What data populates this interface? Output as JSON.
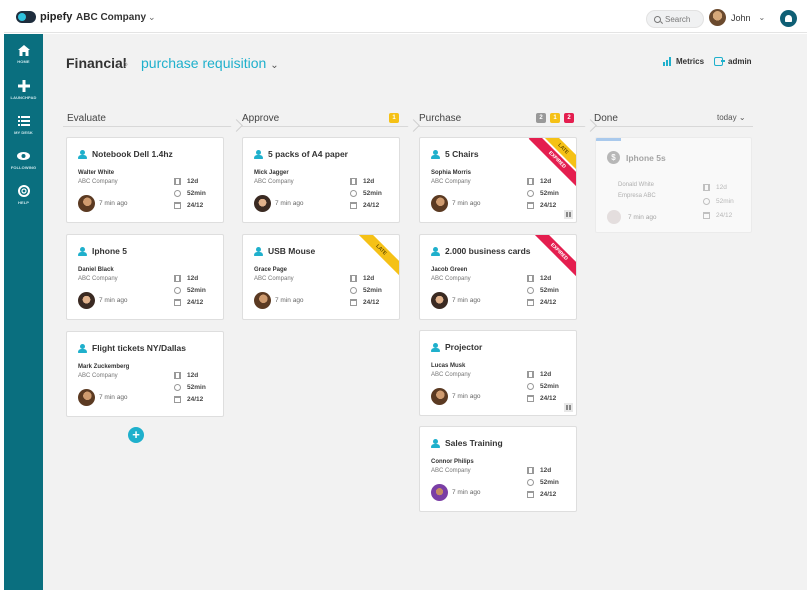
{
  "topbar": {
    "logo_text": "pipefy",
    "company": "ABC Company",
    "search_placeholder": "Search",
    "user_name": "John"
  },
  "sidebar": {
    "items": [
      {
        "label": "HOME",
        "icon": "home-icon"
      },
      {
        "label": "LAUNCHPAD",
        "icon": "plus-icon"
      },
      {
        "label": "MY DESK",
        "icon": "list-icon"
      },
      {
        "label": "FOLLOWING",
        "icon": "eye-icon"
      },
      {
        "label": "HELP",
        "icon": "lifebuoy-icon"
      }
    ]
  },
  "header": {
    "title": "Financial",
    "pipe_name": "purchase requisition",
    "metrics_label": "Metrics",
    "admin_label": "admin"
  },
  "colors": {
    "accent": "#1fb0cc",
    "sidebar": "#0a6f7f",
    "late": "#f5c116",
    "expired": "#e41e4f"
  },
  "phases": [
    {
      "title": "Evaluate"
    },
    {
      "title": "Approve",
      "badges": [
        "1"
      ]
    },
    {
      "title": "Purchase",
      "badges": [
        "2",
        "1",
        "2"
      ]
    },
    {
      "title": "Done",
      "filter": "today"
    }
  ],
  "cards": {
    "evaluate": [
      {
        "title": "Notebook Dell 1.4hz",
        "name": "Walter White",
        "company": "ABC Company",
        "ago": "7 min ago",
        "age": "12d",
        "time": "52min",
        "due": "24/12"
      },
      {
        "title": "Iphone 5",
        "name": "Daniel Black",
        "company": "ABC Company",
        "ago": "7 min ago",
        "age": "12d",
        "time": "52min",
        "due": "24/12"
      },
      {
        "title": "Flight tickets NY/Dallas",
        "name": "Mark Zuckemberg",
        "company": "ABC Company",
        "ago": "7 min ago",
        "age": "12d",
        "time": "52min",
        "due": "24/12"
      }
    ],
    "approve": [
      {
        "title": "5 packs of A4 paper",
        "name": "Mick Jagger",
        "company": "ABC Company",
        "ago": "7 min ago",
        "age": "12d",
        "time": "52min",
        "due": "24/12"
      },
      {
        "title": "USB Mouse",
        "name": "Grace Page",
        "company": "ABC Company",
        "ago": "7 min ago",
        "age": "12d",
        "time": "52min",
        "due": "24/12",
        "ribbon": "LATE"
      }
    ],
    "purchase": [
      {
        "title": "5 Chairs",
        "name": "Sophia Morris",
        "company": "ABC Company",
        "ago": "7 min ago",
        "age": "12d",
        "time": "52min",
        "due": "24/12",
        "ribbon_late": "LATE",
        "ribbon_expired": "EXPIRED"
      },
      {
        "title": "2.000 business cards",
        "name": "Jacob Green",
        "company": "ABC Company",
        "ago": "7 min ago",
        "age": "12d",
        "time": "52min",
        "due": "24/12",
        "ribbon": "EXPIRED"
      },
      {
        "title": "Projector",
        "name": "Lucas Musk",
        "company": "ABC Company",
        "ago": "7 min ago",
        "age": "12d",
        "time": "52min",
        "due": "24/12"
      },
      {
        "title": "Sales Training",
        "name": "Connor Philips",
        "company": "ABC Company",
        "ago": "7 min ago",
        "age": "12d",
        "time": "52min",
        "due": "24/12"
      }
    ],
    "done": [
      {
        "title": "Iphone 5s",
        "name": "Donald White",
        "company": "Empresa ABC",
        "ago": "7 min ago",
        "age": "12d",
        "time": "52min",
        "due": "24/12"
      }
    ]
  }
}
